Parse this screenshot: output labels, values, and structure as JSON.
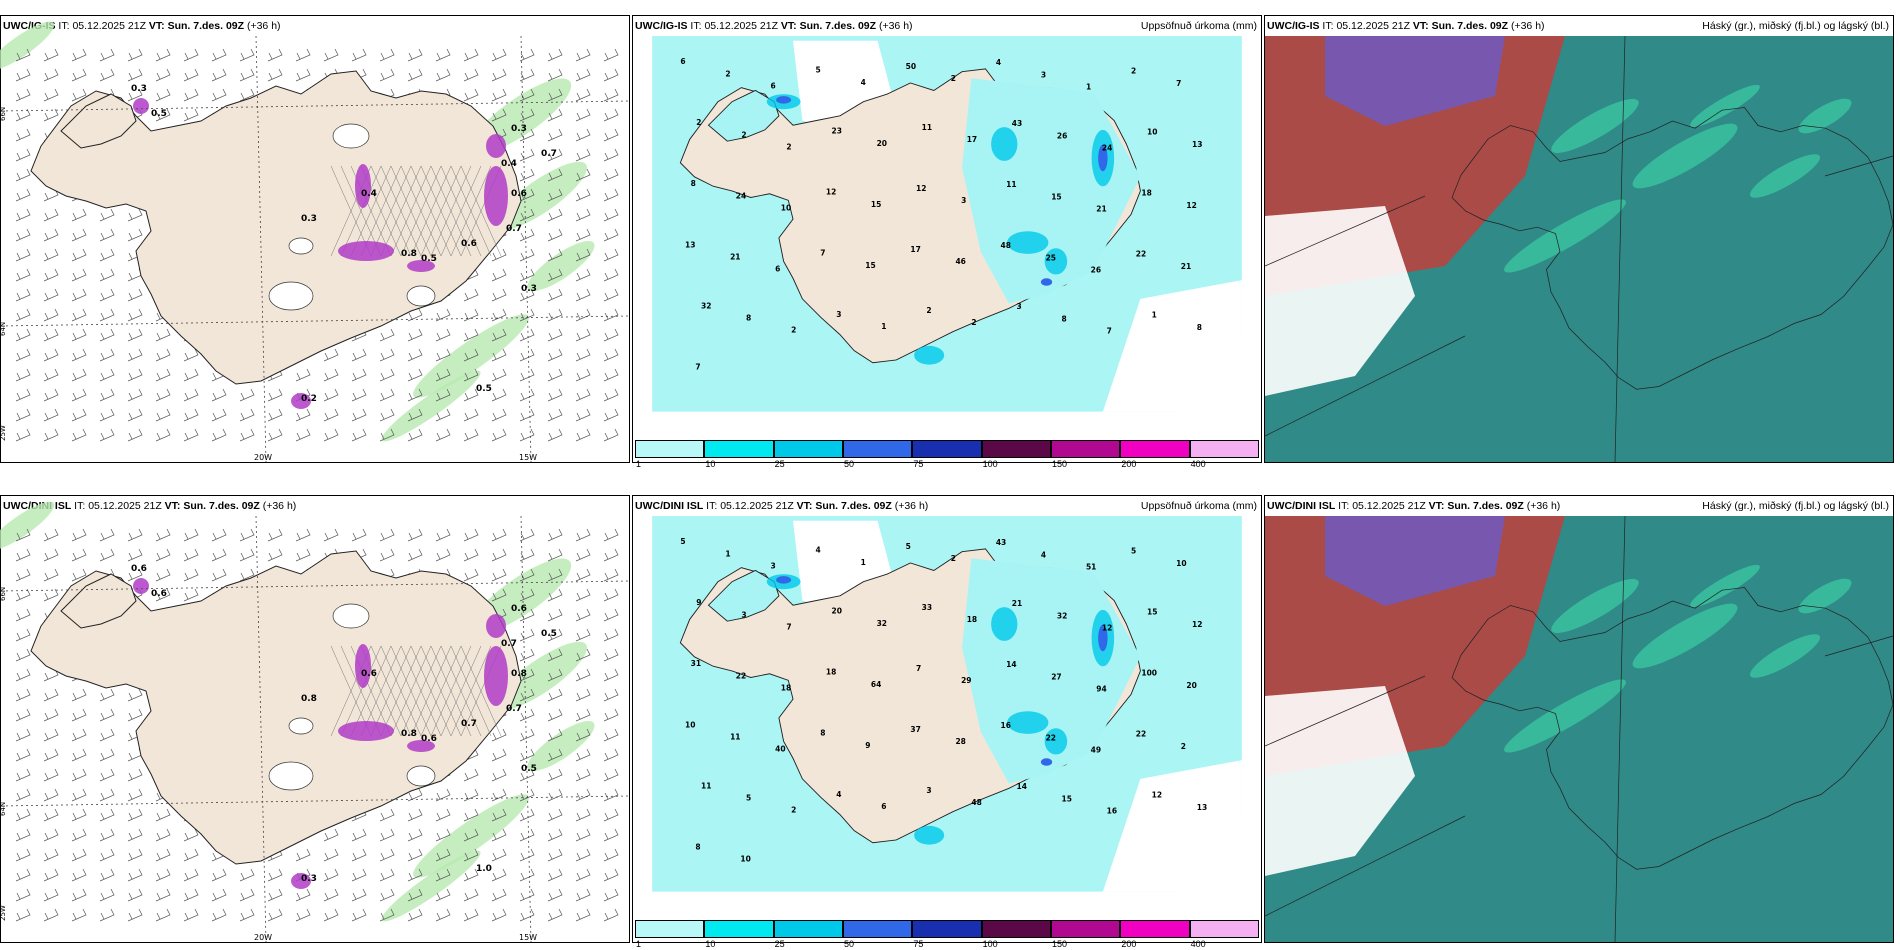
{
  "colors": {
    "land": "#f2e6d8",
    "snow_purple": "#b03cc8",
    "precip_light": "#a8f4f4",
    "cloud_high": "#2f8a88",
    "cloud_mid": "#c0403c",
    "cloud_low": "#6b5ac8"
  },
  "rows": [
    {
      "model": "UWC/IG-IS",
      "panels": [
        {
          "type": "wind",
          "header_model": "UWC/IG-IS",
          "header_it_label": "IT:",
          "header_it": "05.12.2025 21Z",
          "header_vt_label": "VT:",
          "header_vt": "Sun. 7.des. 09Z",
          "header_lead": "(+36 h)",
          "right_title": "",
          "lat_labels": [
            "66N",
            "64N",
            "25W"
          ],
          "lon_labels": [
            "20W",
            "15W"
          ],
          "labels": [
            "0.3",
            "0.5",
            "0.3",
            "0.4",
            "0.6",
            "0.7",
            "0.8",
            "0.5",
            "0.6",
            "0.3",
            "0.4",
            "0.3",
            "0.2",
            "0.5",
            "0.7"
          ]
        },
        {
          "type": "precip",
          "header_model": "UWC/IG-IS",
          "header_it_label": "IT:",
          "header_it": "05.12.2025 21Z",
          "header_vt_label": "VT:",
          "header_vt": "Sun. 7.des. 09Z",
          "header_lead": "(+36 h)",
          "right_title": "Uppsöfnuð úrkoma (mm)",
          "numbers": [
            "6",
            "2",
            "6",
            "5",
            "4",
            "50",
            "2",
            "4",
            "3",
            "1",
            "2",
            "7",
            "2",
            "2",
            "2",
            "23",
            "20",
            "11",
            "17",
            "43",
            "26",
            "24",
            "10",
            "13",
            "8",
            "24",
            "10",
            "12",
            "15",
            "12",
            "3",
            "11",
            "15",
            "21",
            "18",
            "12",
            "13",
            "21",
            "6",
            "7",
            "15",
            "17",
            "46",
            "48",
            "25",
            "26",
            "22",
            "21",
            "32",
            "8",
            "2",
            "3",
            "1",
            "2",
            "2",
            "3",
            "8",
            "7",
            "1",
            "8",
            "7"
          ]
        },
        {
          "type": "cloud",
          "header_model": "UWC/IG-IS",
          "header_it_label": "IT:",
          "header_it": "05.12.2025 21Z",
          "header_vt_label": "VT:",
          "header_vt": "Sun. 7.des. 09Z",
          "header_lead": "(+36 h)",
          "right_title": "Háský (gr.), miðský (fj.bl.) og lágský (bl.)"
        }
      ]
    },
    {
      "model": "UWC/DINI ISL",
      "panels": [
        {
          "type": "wind",
          "header_model": "UWC/DINI ISL",
          "header_it_label": "IT:",
          "header_it": "05.12.2025 21Z",
          "header_vt_label": "VT:",
          "header_vt": "Sun. 7.des. 09Z",
          "header_lead": "(+36 h)",
          "right_title": "",
          "lat_labels": [
            "66N",
            "64N",
            "25W"
          ],
          "lon_labels": [
            "20W",
            "15W"
          ],
          "labels": [
            "0.6",
            "1.0",
            "0.6",
            "0.7",
            "0.8",
            "0.7",
            "0.8",
            "0.6",
            "0.7",
            "0.8",
            "0.6",
            "0.5",
            "0.3",
            "0.6",
            "0.5"
          ]
        },
        {
          "type": "precip",
          "header_model": "UWC/DINI ISL",
          "header_it_label": "IT:",
          "header_it": "05.12.2025 21Z",
          "header_vt_label": "VT:",
          "header_vt": "Sun. 7.des. 09Z",
          "header_lead": "(+36 h)",
          "right_title": "Uppsöfnuð úrkoma (mm)",
          "numbers": [
            "5",
            "1",
            "3",
            "4",
            "1",
            "5",
            "2",
            "43",
            "4",
            "51",
            "5",
            "10",
            "9",
            "3",
            "7",
            "20",
            "32",
            "33",
            "18",
            "21",
            "32",
            "12",
            "15",
            "12",
            "31",
            "22",
            "18",
            "18",
            "64",
            "7",
            "29",
            "14",
            "27",
            "94",
            "100",
            "20",
            "10",
            "11",
            "40",
            "8",
            "9",
            "37",
            "28",
            "16",
            "22",
            "49",
            "22",
            "2",
            "11",
            "5",
            "2",
            "4",
            "6",
            "3",
            "48",
            "14",
            "15",
            "16",
            "12",
            "13",
            "8",
            "10"
          ]
        },
        {
          "type": "cloud",
          "header_model": "UWC/DINI ISL",
          "header_it_label": "IT:",
          "header_it": "05.12.2025 21Z",
          "header_vt_label": "VT:",
          "header_vt": "Sun. 7.des. 09Z",
          "header_lead": "(+36 h)",
          "right_title": "Háský (gr.), miðský (fj.bl.) og lágský (bl.)"
        }
      ]
    }
  ],
  "colorbar": {
    "ticks": [
      "1",
      "10",
      "25",
      "50",
      "75",
      "100",
      "150",
      "200",
      "400"
    ],
    "colors": [
      "#b8f8f8",
      "#00e8f0",
      "#00c8e8",
      "#3068e8",
      "#1830b0",
      "#5a0848",
      "#b00890",
      "#f000c0",
      "#f4b0f0"
    ]
  }
}
